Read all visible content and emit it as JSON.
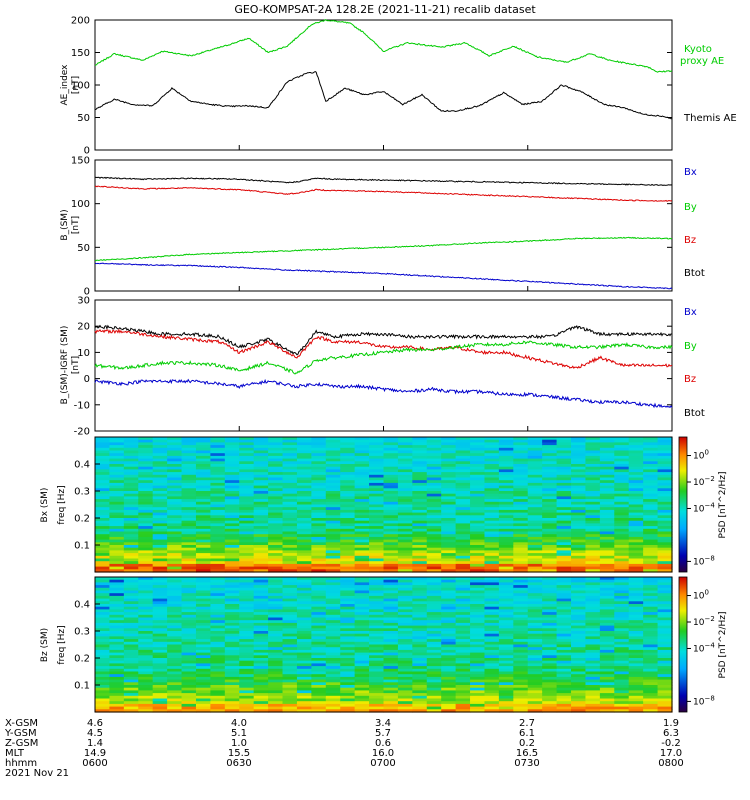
{
  "title": "GEO-KOMPSAT-2A 128.2E (2021-11-21) recalib dataset",
  "chart_data": [
    {
      "type": "line",
      "panel": "ae",
      "ylabel_lines": [
        "AE_index",
        "[nT]"
      ],
      "ylim": [
        0,
        200
      ],
      "yticks": [
        "0",
        "50",
        "100",
        "150",
        "200"
      ],
      "xlim": [
        "06:00",
        "08:00"
      ],
      "series": [
        {
          "name": "Kyoto proxy AE",
          "color": "#00cc00",
          "x": [
            "06:00",
            "06:04",
            "06:10",
            "06:14",
            "06:20",
            "06:27",
            "06:32",
            "06:36",
            "06:40",
            "06:45",
            "06:48",
            "06:53",
            "06:56",
            "07:00",
            "07:05",
            "07:12",
            "07:17",
            "07:22",
            "07:27",
            "07:32",
            "07:38",
            "07:43",
            "07:47",
            "07:51",
            "07:55",
            "07:57",
            "08:00"
          ],
          "values": [
            130,
            148,
            138,
            152,
            145,
            160,
            172,
            150,
            160,
            193,
            200,
            195,
            180,
            152,
            165,
            158,
            165,
            145,
            160,
            143,
            135,
            148,
            138,
            133,
            128,
            120,
            122
          ]
        },
        {
          "name": "Themis AE",
          "color": "#000000",
          "x": [
            "06:00",
            "06:04",
            "06:08",
            "06:12",
            "06:16",
            "06:20",
            "06:24",
            "06:28",
            "06:32",
            "06:36",
            "06:40",
            "06:44",
            "06:46",
            "06:48",
            "06:52",
            "06:56",
            "07:00",
            "07:04",
            "07:08",
            "07:12",
            "07:15",
            "07:20",
            "07:25",
            "07:29",
            "07:33",
            "07:37",
            "07:41",
            "07:46",
            "07:50",
            "07:54",
            "07:58",
            "08:00"
          ],
          "values": [
            62,
            78,
            70,
            68,
            95,
            75,
            70,
            67,
            68,
            65,
            105,
            118,
            120,
            75,
            95,
            85,
            90,
            70,
            85,
            60,
            60,
            68,
            88,
            70,
            75,
            100,
            90,
            70,
            65,
            55,
            52,
            48
          ]
        }
      ],
      "legend_placement": "right"
    },
    {
      "type": "line",
      "panel": "b_sm",
      "ylabel_lines": [
        "B_(SM)",
        "[nT]"
      ],
      "ylim": [
        0,
        150
      ],
      "yticks": [
        "0",
        "50",
        "100",
        "150"
      ],
      "xlim": [
        "06:00",
        "08:00"
      ],
      "series": [
        {
          "name": "Bx",
          "color": "#000000",
          "x": [
            "06:00",
            "06:10",
            "06:20",
            "06:30",
            "06:40",
            "06:42",
            "06:46",
            "06:50",
            "07:00",
            "07:10",
            "07:20",
            "07:30",
            "07:40",
            "07:50",
            "08:00"
          ],
          "values": [
            130,
            128,
            129,
            128,
            124,
            125,
            129,
            128,
            127,
            126,
            125,
            124,
            123,
            122,
            121
          ]
        },
        {
          "name": "By",
          "color": "#dd0000",
          "x": [
            "06:00",
            "06:10",
            "06:20",
            "06:30",
            "06:40",
            "06:42",
            "06:46",
            "06:50",
            "07:00",
            "07:10",
            "07:20",
            "07:30",
            "07:40",
            "07:50",
            "08:00"
          ],
          "values": [
            120,
            117,
            118,
            116,
            111,
            112,
            116,
            115,
            114,
            112,
            110,
            108,
            106,
            104,
            103
          ]
        },
        {
          "name": "Bz",
          "color": "#00cc00",
          "x": [
            "06:00",
            "06:10",
            "06:20",
            "06:30",
            "06:40",
            "06:50",
            "07:00",
            "07:10",
            "07:20",
            "07:30",
            "07:40",
            "07:50",
            "08:00"
          ],
          "values": [
            35,
            38,
            42,
            44,
            46,
            48,
            50,
            52,
            55,
            57,
            60,
            61,
            60
          ]
        },
        {
          "name": "Btot",
          "color": "#0000cc",
          "x": [
            "06:00",
            "06:10",
            "06:20",
            "06:30",
            "06:40",
            "06:50",
            "07:00",
            "07:10",
            "07:20",
            "07:30",
            "07:40",
            "07:50",
            "08:00"
          ],
          "values": [
            32,
            30,
            29,
            27,
            24,
            22,
            20,
            17,
            14,
            11,
            8,
            5,
            3
          ]
        }
      ]
    },
    {
      "type": "line",
      "panel": "b_minus_igrf",
      "ylabel_lines": [
        "B_(SM)-IGRF (SM)",
        "[nT]"
      ],
      "ylim": [
        -20,
        30
      ],
      "yticks": [
        "-20",
        "-10",
        "0",
        "10",
        "20",
        "30"
      ],
      "xlim": [
        "06:00",
        "08:00"
      ],
      "series": [
        {
          "name": "Bx",
          "color": "#000000",
          "x": [
            "06:00",
            "06:06",
            "06:10",
            "06:14",
            "06:20",
            "06:26",
            "06:30",
            "06:36",
            "06:42",
            "06:46",
            "06:50",
            "06:55",
            "07:00",
            "07:05",
            "07:10",
            "07:15",
            "07:20",
            "07:25",
            "07:30",
            "07:35",
            "07:40",
            "07:45",
            "07:50",
            "07:55",
            "08:00"
          ],
          "values": [
            20,
            19,
            18,
            17,
            17,
            16,
            12,
            15,
            9,
            18,
            16,
            17,
            17,
            16,
            16,
            16,
            16,
            16,
            16,
            16,
            20,
            17,
            17,
            17,
            17
          ]
        },
        {
          "name": "By",
          "color": "#dd0000",
          "x": [
            "06:00",
            "06:06",
            "06:10",
            "06:14",
            "06:20",
            "06:26",
            "06:30",
            "06:36",
            "06:42",
            "06:46",
            "06:50",
            "06:55",
            "07:00",
            "07:05",
            "07:10",
            "07:15",
            "07:20",
            "07:25",
            "07:30",
            "07:35",
            "07:40",
            "07:45",
            "07:50",
            "07:55",
            "08:00"
          ],
          "values": [
            18,
            18,
            17,
            16,
            15,
            14,
            10,
            14,
            8,
            16,
            14,
            14,
            12,
            12,
            11,
            12,
            10,
            10,
            8,
            6,
            4,
            8,
            5,
            5,
            5
          ]
        },
        {
          "name": "Bz",
          "color": "#00cc00",
          "x": [
            "06:00",
            "06:06",
            "06:10",
            "06:14",
            "06:20",
            "06:26",
            "06:30",
            "06:36",
            "06:42",
            "06:46",
            "06:50",
            "06:55",
            "07:00",
            "07:05",
            "07:10",
            "07:15",
            "07:20",
            "07:25",
            "07:30",
            "07:35",
            "07:40",
            "07:45",
            "07:50",
            "07:55",
            "08:00"
          ],
          "values": [
            5,
            4,
            5,
            6,
            6,
            5,
            3,
            6,
            2,
            7,
            8,
            9,
            10,
            11,
            11,
            12,
            13,
            13,
            14,
            13,
            12,
            12,
            13,
            12,
            12
          ]
        },
        {
          "name": "Btot",
          "color": "#0000cc",
          "x": [
            "06:00",
            "06:06",
            "06:10",
            "06:14",
            "06:20",
            "06:26",
            "06:30",
            "06:36",
            "06:42",
            "06:46",
            "06:50",
            "06:55",
            "07:00",
            "07:05",
            "07:10",
            "07:15",
            "07:20",
            "07:25",
            "07:30",
            "07:35",
            "07:40",
            "07:45",
            "07:50",
            "07:55",
            "08:00"
          ],
          "values": [
            -1,
            -2,
            -1,
            -1,
            -1,
            -2,
            -3,
            -1,
            -3,
            -2,
            -3,
            -3,
            -4,
            -5,
            -4,
            -5,
            -5,
            -6,
            -6,
            -7,
            -8,
            -9,
            -9,
            -10,
            -11
          ]
        }
      ]
    },
    {
      "type": "heatmap",
      "panel": "bx_spectrogram",
      "ylabel_lines": [
        "Bx (SM)",
        "freq [Hz]"
      ],
      "ylim": [
        0,
        0.5
      ],
      "yticks": [
        "0.1",
        "0.2",
        "0.3",
        "0.4"
      ],
      "xlim": [
        "06:00",
        "08:00"
      ],
      "colorbar": {
        "label": "PSD [nT^2/Hz]",
        "ticks": [
          "10^0",
          "10^-2",
          "10^-4",
          "10^-8"
        ]
      }
    },
    {
      "type": "heatmap",
      "panel": "bz_spectrogram",
      "ylabel_lines": [
        "Bz (SM)",
        "freq [Hz]"
      ],
      "ylim": [
        0,
        0.5
      ],
      "yticks": [
        "0.1",
        "0.2",
        "0.3",
        "0.4"
      ],
      "xlim": [
        "06:00",
        "08:00"
      ],
      "colorbar": {
        "label": "PSD [nT^2/Hz]",
        "ticks": [
          "10^0",
          "10^-2",
          "10^-4",
          "10^-8"
        ]
      }
    }
  ],
  "footer": {
    "rows": [
      {
        "label": "X-GSM",
        "values": [
          "4.6",
          "4.0",
          "3.4",
          "2.7",
          "1.9"
        ]
      },
      {
        "label": "Y-GSM",
        "values": [
          "4.5",
          "5.1",
          "5.7",
          "6.1",
          "6.3"
        ]
      },
      {
        "label": "Z-GSM",
        "values": [
          "1.4",
          "1.0",
          "0.6",
          "0.2",
          "-0.2"
        ]
      },
      {
        "label": "MLT",
        "values": [
          "14.9",
          "15.5",
          "16.0",
          "16.5",
          "17.0"
        ]
      },
      {
        "label": "hhmm",
        "values": [
          "0600",
          "0630",
          "0700",
          "0730",
          "0800"
        ]
      }
    ],
    "date": "2021 Nov 21"
  },
  "colors": {
    "kyoto": "#00cc00",
    "themis": "#000000",
    "bx": "#000000",
    "by": "#dd0000",
    "bz": "#00cc00",
    "btot": "#0000cc",
    "label_bx": "#0000cc",
    "label_by": "#00cc00",
    "label_bz": "#dd0000",
    "label_btot": "#000000"
  }
}
